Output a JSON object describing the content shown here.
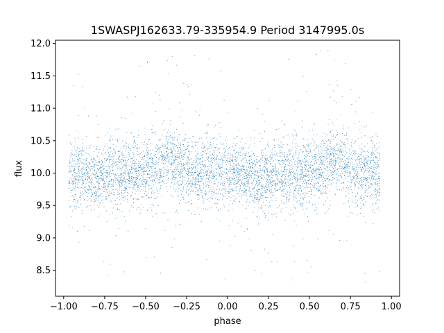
{
  "chart_data": {
    "type": "scatter",
    "title": "1SWASPJ162633.79-335954.9 Period 3147995.0s",
    "xlabel": "phase",
    "ylabel": "flux",
    "xlim": [
      -1.05,
      1.05
    ],
    "ylim": [
      8.1,
      12.05
    ],
    "xticks": [
      -1.0,
      -0.75,
      -0.5,
      -0.25,
      0.0,
      0.25,
      0.5,
      0.75,
      1.0
    ],
    "xtick_labels": [
      "−1.00",
      "−0.75",
      "−0.50",
      "−0.25",
      "0.00",
      "0.25",
      "0.50",
      "0.75",
      "1.00"
    ],
    "yticks": [
      8.5,
      9.0,
      9.5,
      10.0,
      10.5,
      11.0,
      11.5,
      12.0
    ],
    "ytick_labels": [
      "8.5",
      "9.0",
      "9.5",
      "10.0",
      "10.5",
      "11.0",
      "11.5",
      "12.0"
    ],
    "grid": false,
    "point_color": "#1f77b4",
    "phase_range": [
      -0.97,
      0.93
    ],
    "baseline_flux": 10.0,
    "typical_scatter": 0.25,
    "min_flux": 8.3,
    "max_flux": 11.9
  }
}
